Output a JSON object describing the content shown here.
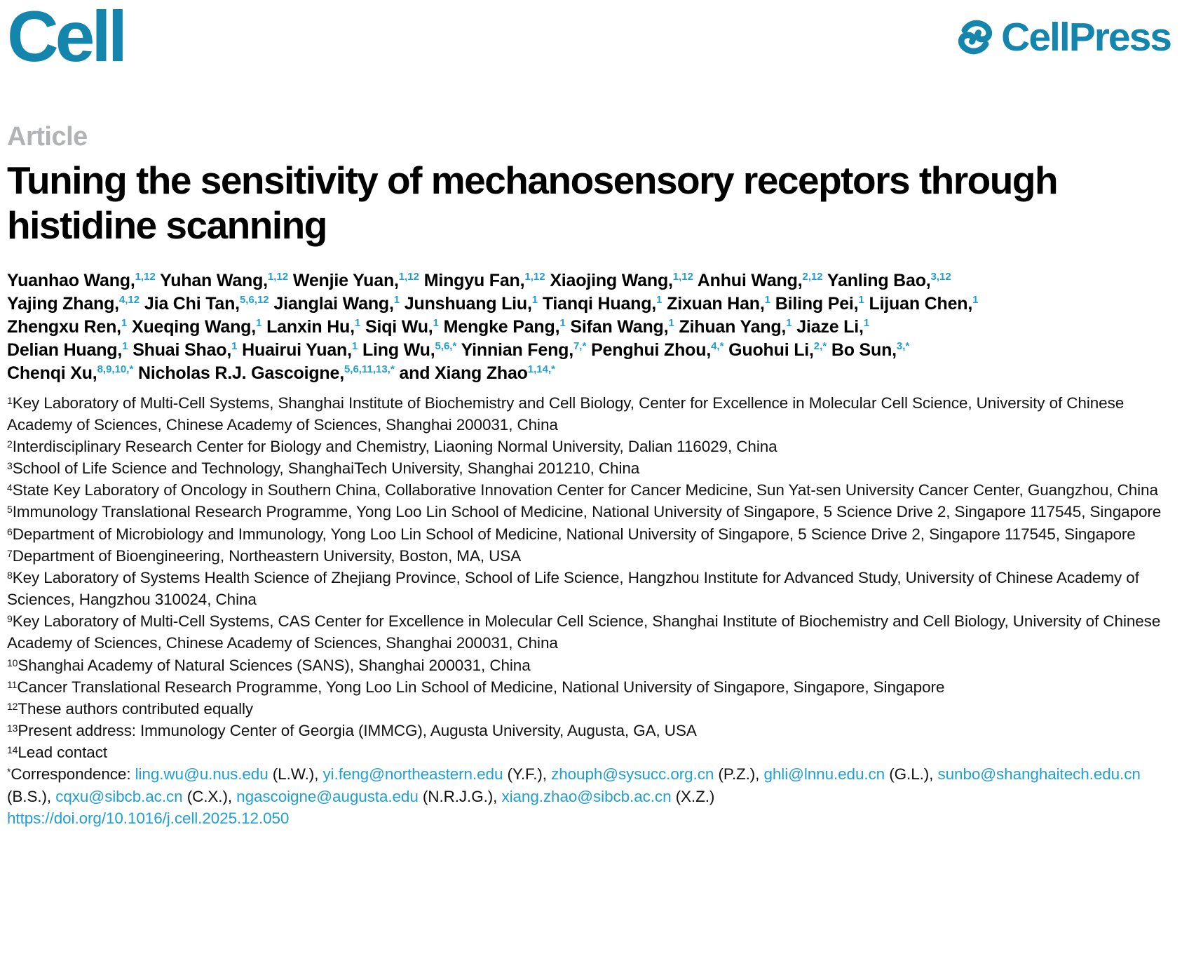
{
  "header": {
    "journal_name": "Cell",
    "publisher_name": "CellPress"
  },
  "article": {
    "kicker": "Article",
    "title": "Tuning the sensitivity of mechanosensory receptors through histidine scanning"
  },
  "authors": [
    {
      "name": "Yuanhao Wang,",
      "sup": "1,12",
      "br_after": false
    },
    {
      "name": "Yuhan Wang,",
      "sup": "1,12",
      "br_after": false
    },
    {
      "name": "Wenjie Yuan,",
      "sup": "1,12",
      "br_after": false
    },
    {
      "name": "Mingyu Fan,",
      "sup": "1,12",
      "br_after": false
    },
    {
      "name": "Xiaojing Wang,",
      "sup": "1,12",
      "br_after": false
    },
    {
      "name": "Anhui Wang,",
      "sup": "2,12",
      "br_after": false
    },
    {
      "name": "Yanling Bao,",
      "sup": "3,12",
      "br_after": true
    },
    {
      "name": "Yajing Zhang,",
      "sup": "4,12",
      "br_after": false
    },
    {
      "name": "Jia Chi Tan,",
      "sup": "5,6,12",
      "br_after": false
    },
    {
      "name": "Jianglai Wang,",
      "sup": "1",
      "br_after": false
    },
    {
      "name": "Junshuang Liu,",
      "sup": "1",
      "br_after": false
    },
    {
      "name": "Tianqi Huang,",
      "sup": "1",
      "br_after": false
    },
    {
      "name": "Zixuan Han,",
      "sup": "1",
      "br_after": false
    },
    {
      "name": "Biling Pei,",
      "sup": "1",
      "br_after": false
    },
    {
      "name": "Lijuan Chen,",
      "sup": "1",
      "br_after": true
    },
    {
      "name": "Zhengxu Ren,",
      "sup": "1",
      "br_after": false
    },
    {
      "name": "Xueqing Wang,",
      "sup": "1",
      "br_after": false
    },
    {
      "name": "Lanxin Hu,",
      "sup": "1",
      "br_after": false
    },
    {
      "name": "Siqi Wu,",
      "sup": "1",
      "br_after": false
    },
    {
      "name": "Mengke Pang,",
      "sup": "1",
      "br_after": false
    },
    {
      "name": "Sifan Wang,",
      "sup": "1",
      "br_after": false
    },
    {
      "name": "Zihuan Yang,",
      "sup": "1",
      "br_after": false
    },
    {
      "name": "Jiaze Li,",
      "sup": "1",
      "br_after": true
    },
    {
      "name": "Delian Huang,",
      "sup": "1",
      "br_after": false
    },
    {
      "name": "Shuai Shao,",
      "sup": "1",
      "br_after": false
    },
    {
      "name": "Huairui Yuan,",
      "sup": "1",
      "br_after": false
    },
    {
      "name": "Ling Wu,",
      "sup": "5,6,*",
      "br_after": false
    },
    {
      "name": "Yinnian Feng,",
      "sup": "7,*",
      "br_after": false
    },
    {
      "name": "Penghui Zhou,",
      "sup": "4,*",
      "br_after": false
    },
    {
      "name": "Guohui Li,",
      "sup": "2,*",
      "br_after": false
    },
    {
      "name": "Bo Sun,",
      "sup": "3,*",
      "br_after": true
    },
    {
      "name": "Chenqi Xu,",
      "sup": "8,9,10,*",
      "br_after": false
    },
    {
      "name": "Nicholas R.J. Gascoigne,",
      "sup": "5,6,11,13,*",
      "br_after": false
    },
    {
      "name": "and Xiang Zhao",
      "sup": "1,14,*",
      "br_after": false
    }
  ],
  "affiliations": [
    {
      "sup": "1",
      "text": "Key Laboratory of Multi-Cell Systems, Shanghai Institute of Biochemistry and Cell Biology, Center for Excellence in Molecular Cell Science, University of Chinese Academy of Sciences, Chinese Academy of Sciences, Shanghai 200031, China"
    },
    {
      "sup": "2",
      "text": "Interdisciplinary Research Center for Biology and Chemistry, Liaoning Normal University, Dalian 116029, China"
    },
    {
      "sup": "3",
      "text": "School of Life Science and Technology, ShanghaiTech University, Shanghai 201210, China"
    },
    {
      "sup": "4",
      "text": "State Key Laboratory of Oncology in Southern China, Collaborative Innovation Center for Cancer Medicine, Sun Yat-sen University Cancer Center, Guangzhou, China"
    },
    {
      "sup": "5",
      "text": "Immunology Translational Research Programme, Yong Loo Lin School of Medicine, National University of Singapore, 5 Science Drive 2, Singapore 117545, Singapore"
    },
    {
      "sup": "6",
      "text": "Department of Microbiology and Immunology, Yong Loo Lin School of Medicine, National University of Singapore, 5 Science Drive 2, Singapore 117545, Singapore"
    },
    {
      "sup": "7",
      "text": "Department of Bioengineering, Northeastern University, Boston, MA, USA"
    },
    {
      "sup": "8",
      "text": "Key Laboratory of Systems Health Science of Zhejiang Province, School of Life Science, Hangzhou Institute for Advanced Study, University of Chinese Academy of Sciences, Hangzhou 310024, China"
    },
    {
      "sup": "9",
      "text": "Key Laboratory of Multi-Cell Systems, CAS Center for Excellence in Molecular Cell Science, Shanghai Institute of Biochemistry and Cell Biology, University of Chinese Academy of Sciences, Chinese Academy of Sciences, Shanghai 200031, China"
    },
    {
      "sup": "10",
      "text": "Shanghai Academy of Natural Sciences (SANS), Shanghai 200031, China"
    },
    {
      "sup": "11",
      "text": "Cancer Translational Research Programme, Yong Loo Lin School of Medicine, National University of Singapore, Singapore, Singapore"
    },
    {
      "sup": "12",
      "text": "These authors contributed equally"
    },
    {
      "sup": "13",
      "text": "Present address: Immunology Center of Georgia (IMMCG), Augusta University, Augusta, GA, USA"
    },
    {
      "sup": "14",
      "text": "Lead contact"
    }
  ],
  "correspondence": {
    "star": "*",
    "label": "Correspondence:",
    "contacts": [
      {
        "email": "ling.wu@u.nus.edu",
        "initials": "(L.W.)"
      },
      {
        "email": "yi.feng@northeastern.edu",
        "initials": "(Y.F.)"
      },
      {
        "email": "zhouph@sysucc.org.cn",
        "initials": "(P.Z.)"
      },
      {
        "email": "ghli@lnnu.edu.cn",
        "initials": "(G.L.)"
      },
      {
        "email": "sunbo@shanghaitech.edu.cn",
        "initials": "(B.S.)"
      },
      {
        "email": "cqxu@sibcb.ac.cn",
        "initials": "(C.X.)"
      },
      {
        "email": "ngascoigne@augusta.edu",
        "initials": "(N.R.J.G.)"
      },
      {
        "email": "xiang.zhao@sibcb.ac.cn",
        "initials": "(X.Z.)"
      }
    ],
    "doi": "https://doi.org/10.1016/j.cell.2025.12.050"
  },
  "colors": {
    "logo_blue": "#1486ad",
    "link_blue": "#209fd4",
    "kicker_gray": "#b1b3b5"
  }
}
